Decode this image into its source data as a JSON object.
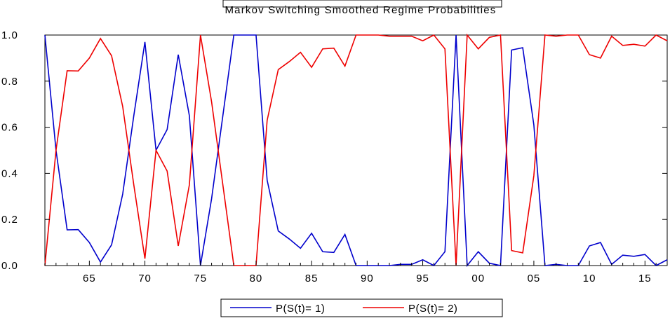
{
  "chart_data": {
    "type": "line",
    "title": "Markov Switching Smoothed Regime Probabilities",
    "xlabel": "",
    "ylabel": "",
    "x": [
      1961,
      1962,
      1963,
      1964,
      1965,
      1966,
      1967,
      1968,
      1969,
      1970,
      1971,
      1972,
      1973,
      1974,
      1975,
      1976,
      1977,
      1978,
      1979,
      1980,
      1981,
      1982,
      1983,
      1984,
      1985,
      1986,
      1987,
      1988,
      1989,
      1990,
      1991,
      1992,
      1993,
      1994,
      1995,
      1996,
      1997,
      1998,
      1999,
      2000,
      2001,
      2002,
      2003,
      2004,
      2005,
      2006,
      2007,
      2008,
      2009,
      2010,
      2011,
      2012,
      2013,
      2014,
      2015,
      2016,
      2017
    ],
    "xlim": [
      1961,
      2017
    ],
    "ylim": [
      0.0,
      1.0
    ],
    "x_ticks": [
      1965,
      1970,
      1975,
      1980,
      1985,
      1990,
      1995,
      2000,
      2005,
      2010,
      2015
    ],
    "x_tick_labels": [
      "65",
      "70",
      "75",
      "80",
      "85",
      "90",
      "95",
      "00",
      "05",
      "10",
      "15"
    ],
    "y_ticks": [
      0.0,
      0.2,
      0.4,
      0.6,
      0.8,
      1.0
    ],
    "y_tick_labels": [
      "0.0",
      "0.2",
      "0.4",
      "0.6",
      "0.8",
      "1.0"
    ],
    "grid": false,
    "legend_position": "bottom-center",
    "series": [
      {
        "name": "P(S(t)= 1)",
        "color": "#0000cc",
        "values": [
          1.0,
          0.5,
          0.155,
          0.156,
          0.1,
          0.015,
          0.09,
          0.31,
          0.65,
          0.97,
          0.5,
          0.59,
          0.915,
          0.65,
          0.0,
          0.29,
          0.645,
          1.0,
          1.0,
          1.0,
          0.37,
          0.15,
          0.115,
          0.075,
          0.14,
          0.06,
          0.057,
          0.135,
          0.0,
          0.0,
          0.0,
          0.0,
          0.005,
          0.005,
          0.025,
          0.0,
          0.06,
          1.0,
          0.0,
          0.06,
          0.01,
          0.0,
          0.935,
          0.945,
          0.61,
          0.0,
          0.005,
          0.0,
          0.0,
          0.085,
          0.1,
          0.005,
          0.045,
          0.04,
          0.048,
          0.0,
          0.025
        ]
      },
      {
        "name": "P(S(t)= 2)",
        "color": "#ee0000",
        "values": [
          0.0,
          0.5,
          0.845,
          0.844,
          0.9,
          0.985,
          0.91,
          0.69,
          0.35,
          0.03,
          0.5,
          0.41,
          0.085,
          0.35,
          1.0,
          0.71,
          0.355,
          0.0,
          0.0,
          0.0,
          0.63,
          0.85,
          0.885,
          0.925,
          0.86,
          0.94,
          0.943,
          0.865,
          1.0,
          1.0,
          1.0,
          0.995,
          0.995,
          0.995,
          0.975,
          1.0,
          0.94,
          0.0,
          1.0,
          0.94,
          0.99,
          1.0,
          0.065,
          0.055,
          0.39,
          1.0,
          0.995,
          1.0,
          1.0,
          0.915,
          0.9,
          0.995,
          0.955,
          0.96,
          0.952,
          1.0,
          0.975
        ]
      }
    ]
  }
}
